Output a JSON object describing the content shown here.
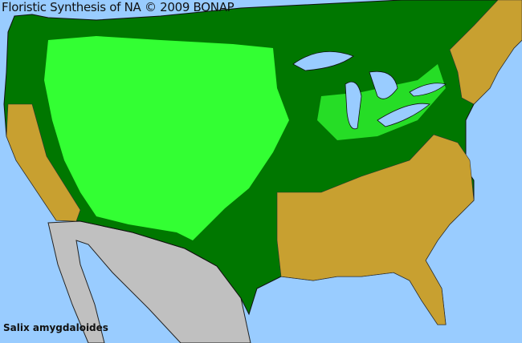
{
  "header": {
    "title": "Floristic Synthesis of NA © 2009 BONAP"
  },
  "species": {
    "name": "Salix amygdaloides"
  },
  "colors": {
    "ocean": "#99ccff",
    "present_native": "#007700",
    "present_county": "#33ff33",
    "absent": "#c8a030",
    "outside_region": "#c0c0c0",
    "state_borders": "#333333"
  }
}
